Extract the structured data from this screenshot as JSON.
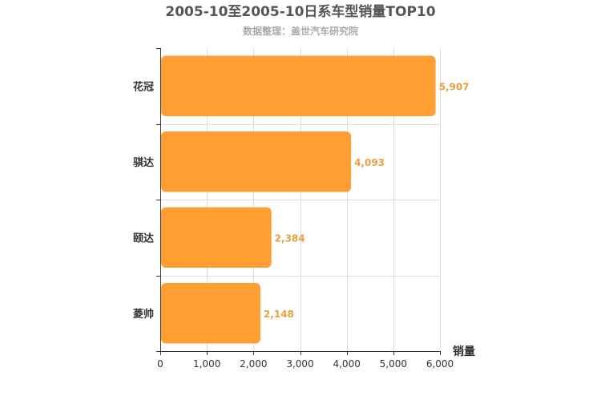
{
  "title": "2005-10至2005-10日系车型销量TOP10",
  "subtitle": "数据整理：盖世汽车研究院",
  "colors": {
    "bar": "#FF9E33",
    "value_label": "#E8A040",
    "grid": "#dddddd",
    "axis": "#333333"
  },
  "chart_data": {
    "type": "bar",
    "orientation": "horizontal",
    "title": "2005-10至2005-10日系车型销量TOP10",
    "subtitle": "数据整理：盖世汽车研究院",
    "categories": [
      "花冠",
      "骐达",
      "颐达",
      "菱帅"
    ],
    "values": [
      5907,
      4093,
      2384,
      2148
    ],
    "value_labels": [
      "5,907",
      "4,093",
      "2,384",
      "2,148"
    ],
    "xlabel": "销量",
    "ylabel": "",
    "xlim": [
      0,
      6000
    ],
    "x_ticks": [
      0,
      1000,
      2000,
      3000,
      4000,
      5000,
      6000
    ],
    "x_tick_labels": [
      "0",
      "1,000",
      "2,000",
      "3,000",
      "4,000",
      "5,000",
      "6,000"
    ],
    "grid": true,
    "legend": "none"
  }
}
